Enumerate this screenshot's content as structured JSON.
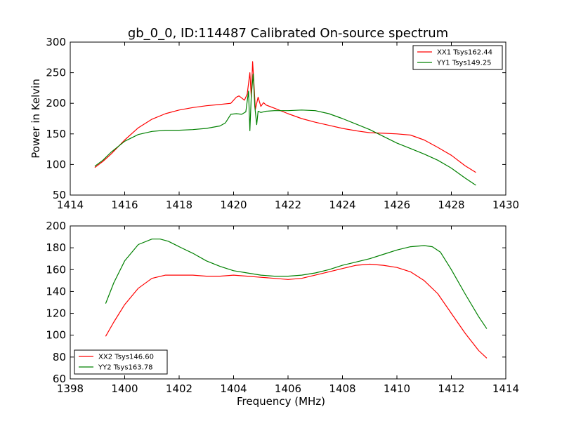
{
  "title": "gb_0_0, ID:114487 Calibrated On-source spectrum",
  "chart_data": [
    {
      "type": "line",
      "ylabel": "Power in Kelvin",
      "xlabel": "",
      "xlim": [
        1414,
        1430
      ],
      "ylim": [
        50,
        300
      ],
      "xticks": [
        "1414",
        "1416",
        "1418",
        "1420",
        "1422",
        "1424",
        "1426",
        "1428",
        "1430"
      ],
      "yticks": [
        "50",
        "100",
        "150",
        "200",
        "250",
        "300"
      ],
      "legend_position": "top-right",
      "series": [
        {
          "name": "XX1 Tsys162.44",
          "color": "#ff0000",
          "x": [
            1414.9,
            1415.2,
            1415.5,
            1416.0,
            1416.5,
            1417.0,
            1417.5,
            1418.0,
            1418.5,
            1419.0,
            1419.5,
            1419.9,
            1420.1,
            1420.2,
            1420.4,
            1420.5,
            1420.6,
            1420.65,
            1420.7,
            1420.75,
            1420.8,
            1420.85,
            1420.9,
            1421.0,
            1421.1,
            1421.2,
            1421.5,
            1422.0,
            1422.5,
            1423.0,
            1423.5,
            1424.0,
            1424.5,
            1425.0,
            1425.5,
            1426.0,
            1426.5,
            1427.0,
            1427.5,
            1428.0,
            1428.5,
            1428.9
          ],
          "y": [
            95,
            105,
            117,
            140,
            160,
            174,
            183,
            189,
            193,
            196,
            198,
            200,
            210,
            212,
            205,
            215,
            250,
            210,
            268,
            230,
            190,
            200,
            210,
            195,
            201,
            197,
            192,
            183,
            175,
            169,
            164,
            159,
            155,
            152,
            151,
            150,
            148,
            140,
            128,
            115,
            98,
            87
          ]
        },
        {
          "name": "YY1 Tsys149.25",
          "color": "#008000",
          "x": [
            1414.9,
            1415.2,
            1415.5,
            1416.0,
            1416.5,
            1417.0,
            1417.5,
            1418.0,
            1418.5,
            1419.0,
            1419.5,
            1419.7,
            1419.9,
            1420.1,
            1420.3,
            1420.45,
            1420.55,
            1420.6,
            1420.65,
            1420.72,
            1420.78,
            1420.85,
            1420.9,
            1421.0,
            1421.2,
            1421.5,
            1422.0,
            1422.5,
            1423.0,
            1423.5,
            1424.0,
            1424.5,
            1425.0,
            1425.5,
            1426.0,
            1426.5,
            1427.0,
            1427.5,
            1428.0,
            1428.5,
            1428.9
          ],
          "y": [
            97,
            107,
            120,
            138,
            149,
            154,
            156,
            156,
            157,
            159,
            163,
            168,
            182,
            183,
            182,
            186,
            220,
            155,
            212,
            248,
            195,
            165,
            187,
            185,
            187,
            188,
            188,
            189,
            188,
            183,
            175,
            166,
            157,
            146,
            135,
            126,
            117,
            107,
            94,
            78,
            66
          ]
        }
      ]
    },
    {
      "type": "line",
      "xlabel": "Frequency (MHz)",
      "ylabel": "",
      "xlim": [
        1398,
        1414
      ],
      "ylim": [
        60,
        200
      ],
      "xticks": [
        "1398",
        "1400",
        "1402",
        "1404",
        "1406",
        "1408",
        "1410",
        "1412",
        "1414"
      ],
      "yticks": [
        "60",
        "80",
        "100",
        "120",
        "140",
        "160",
        "180",
        "200"
      ],
      "legend_position": "lower-left",
      "series": [
        {
          "name": "XX2 Tsys146.60",
          "color": "#ff0000",
          "x": [
            1399.3,
            1399.6,
            1400.0,
            1400.5,
            1401.0,
            1401.5,
            1402.0,
            1402.5,
            1403.0,
            1403.5,
            1404.0,
            1404.5,
            1405.0,
            1405.5,
            1406.0,
            1406.5,
            1407.0,
            1407.5,
            1408.0,
            1408.5,
            1409.0,
            1409.5,
            1410.0,
            1410.5,
            1411.0,
            1411.5,
            1412.0,
            1412.5,
            1413.0,
            1413.3
          ],
          "y": [
            99,
            112,
            128,
            143,
            152,
            155,
            155,
            155,
            154,
            154,
            155,
            154,
            153,
            152,
            151,
            152,
            155,
            158,
            161,
            164,
            165,
            164,
            162,
            158,
            150,
            138,
            120,
            102,
            86,
            79
          ]
        },
        {
          "name": "YY2 Tsys163.78",
          "color": "#008000",
          "x": [
            1399.3,
            1399.6,
            1400.0,
            1400.5,
            1401.0,
            1401.3,
            1401.6,
            1402.0,
            1402.5,
            1403.0,
            1403.5,
            1404.0,
            1404.5,
            1405.0,
            1405.5,
            1406.0,
            1406.5,
            1407.0,
            1407.5,
            1408.0,
            1408.5,
            1409.0,
            1409.5,
            1410.0,
            1410.5,
            1411.0,
            1411.3,
            1411.6,
            1412.0,
            1412.5,
            1413.0,
            1413.3
          ],
          "y": [
            129,
            148,
            168,
            183,
            188,
            188,
            186,
            181,
            175,
            168,
            163,
            159,
            157,
            155,
            154,
            154,
            155,
            157,
            160,
            164,
            167,
            170,
            174,
            178,
            181,
            182,
            181,
            176,
            160,
            138,
            117,
            106
          ]
        }
      ]
    }
  ]
}
